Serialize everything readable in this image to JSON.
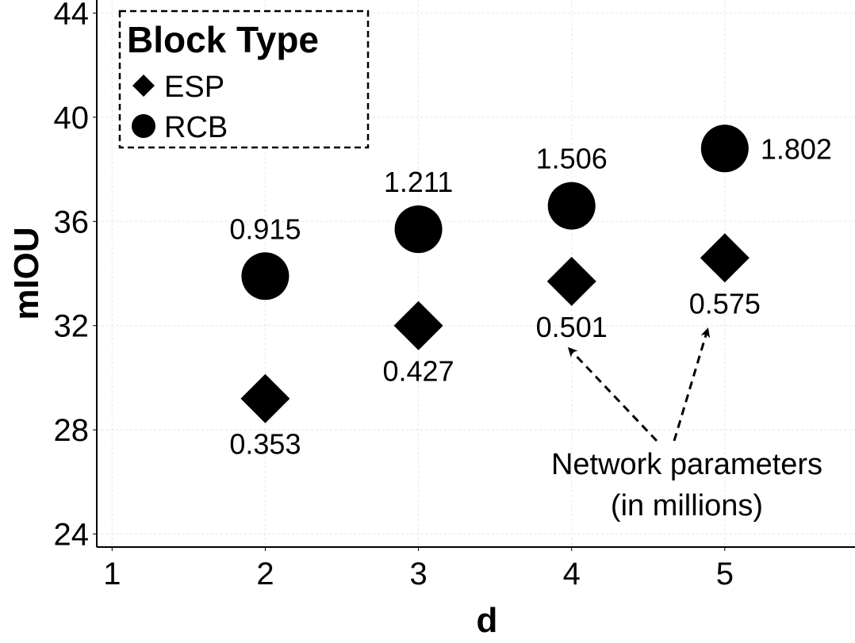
{
  "chart_data": {
    "type": "scatter",
    "title": "",
    "xlabel": "d",
    "ylabel": "mIOU",
    "xlim": [
      0.9,
      5.85
    ],
    "ylim": [
      23.5,
      44.5
    ],
    "xticks": [
      1,
      2,
      3,
      4,
      5
    ],
    "yticks": [
      24,
      28,
      32,
      36,
      40,
      44
    ],
    "grid": true,
    "legend": {
      "title": "Block Type",
      "position": "top-left",
      "entries": [
        {
          "name": "ESP",
          "marker": "diamond"
        },
        {
          "name": "RCB",
          "marker": "circle"
        }
      ]
    },
    "series": [
      {
        "name": "ESP",
        "marker": "diamond",
        "x": [
          2,
          3,
          4,
          5
        ],
        "y": [
          29.2,
          32.0,
          33.7,
          34.6
        ],
        "labels": [
          "0.353",
          "0.427",
          "0.501",
          "0.575"
        ],
        "label_position": [
          "below",
          "below",
          "below",
          "below"
        ]
      },
      {
        "name": "RCB",
        "marker": "circle",
        "x": [
          2,
          3,
          4,
          5
        ],
        "y": [
          33.9,
          35.7,
          36.6,
          38.8
        ],
        "labels": [
          "0.915",
          "1.211",
          "1.506",
          "1.802"
        ],
        "label_position": [
          "above",
          "above",
          "above",
          "right"
        ]
      }
    ],
    "annotation": {
      "text_lines": [
        "Network parameters",
        "(in millions)"
      ],
      "arrow_targets": [
        "0.501",
        "0.575"
      ]
    }
  }
}
